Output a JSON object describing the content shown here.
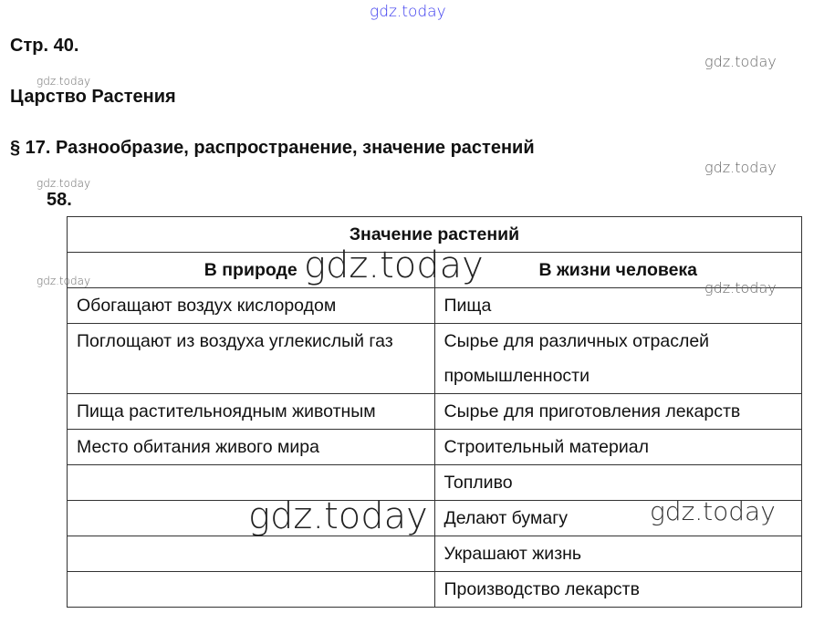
{
  "page_ref": "Стр. 40.",
  "chapter": "Царство Растения",
  "section": "§ 17. Разнообразие, распространение, значение растений",
  "task_number": "58.",
  "watermark": "gdz.today",
  "table": {
    "title": "Значение растений",
    "headers": [
      "В природе",
      "В жизни человека"
    ],
    "rows": [
      [
        "Обогащают воздух кислородом",
        "Пища"
      ],
      [
        "Поглощают из воздуха углекислый газ",
        "Сырье для различных отраслей промышленности"
      ],
      [
        "Пища растительноядным животным",
        "Сырье для приготовления лекарств"
      ],
      [
        "Место обитания живого мира",
        "Строительный материал"
      ],
      [
        "",
        "Топливо"
      ],
      [
        "",
        "Делают бумагу"
      ],
      [
        "",
        "Украшают жизнь"
      ],
      [
        "",
        "Производство лекарств"
      ]
    ]
  }
}
